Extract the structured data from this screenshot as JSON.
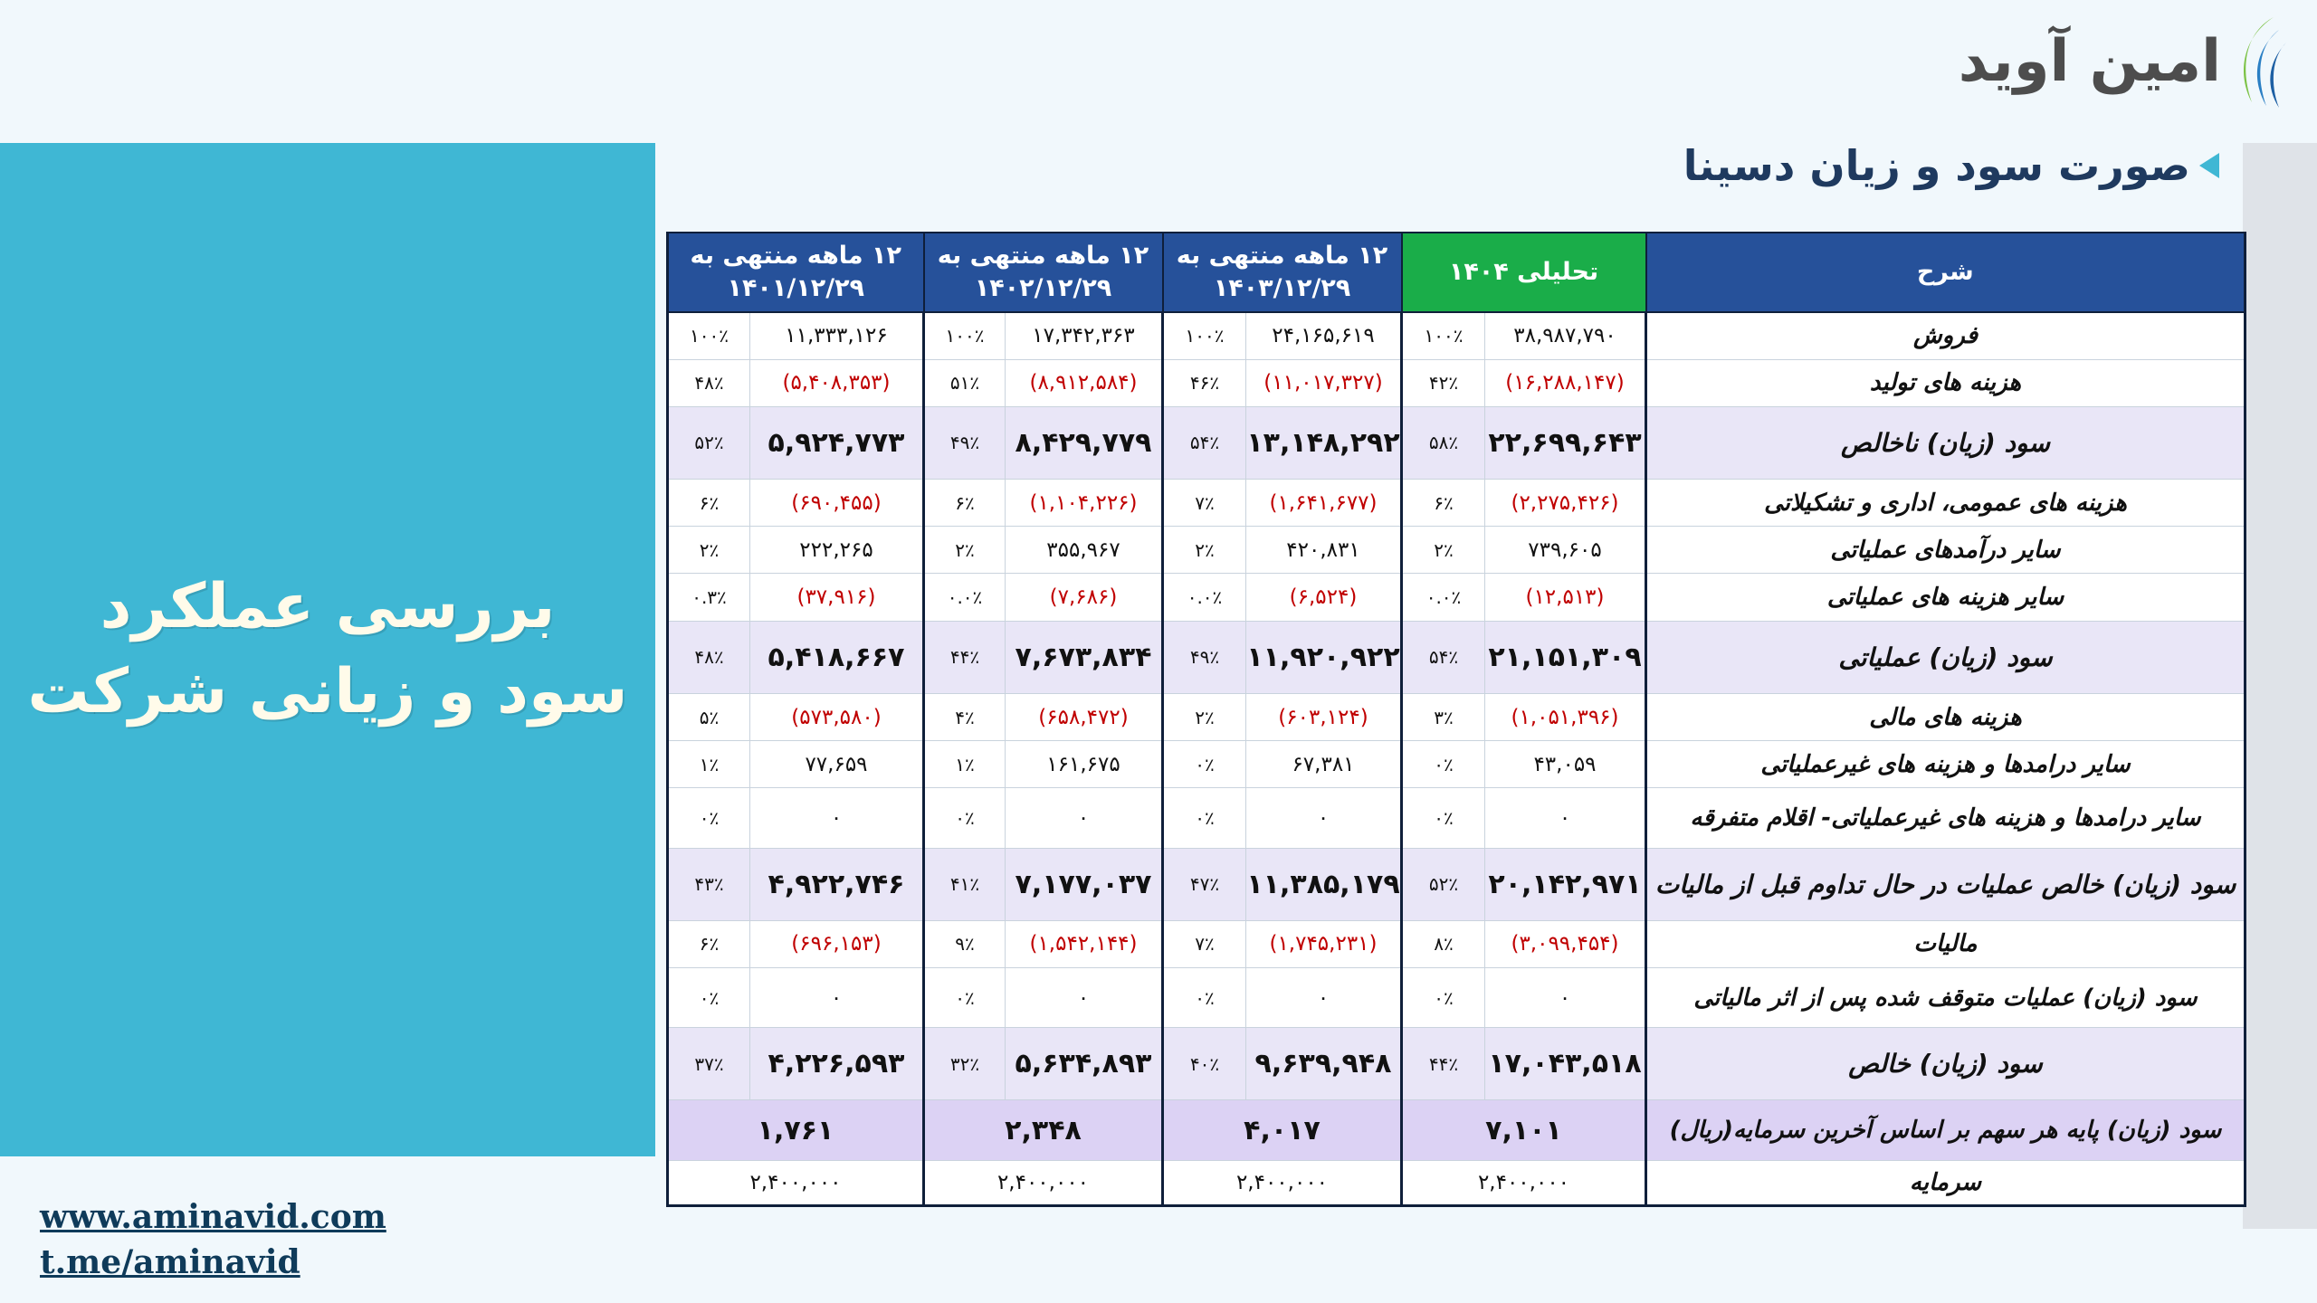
{
  "brand": {
    "name": "امین آوید",
    "color": "#2a7fc4"
  },
  "side_panel": {
    "line1": "بررسی عملکرد",
    "line2": "سود و زیانی شرکت",
    "bg": "#3fb7d4"
  },
  "title": "صورت سود و زیان دسینا",
  "links": {
    "website": "www.aminavid.com",
    "telegram": "t.me/aminavid"
  },
  "table": {
    "headers": {
      "desc": "شرح",
      "c1": "تحلیلی ۱۴۰۴",
      "c2": "۱۲ ماهه منتهی به ۱۴۰۳/۱۲/۲۹",
      "c3": "۱۲ ماهه منتهی به ۱۴۰۲/۱۲/۲۹",
      "c4": "۱۲ ماهه منتهی به ۱۴۰۱/۱۲/۲۹"
    },
    "rows": [
      {
        "label": "فروش",
        "type": "normal",
        "cells": [
          {
            "v": "۳۸,۹۸۷,۷۹۰",
            "p": "۱۰۰٪",
            "neg": false
          },
          {
            "v": "۲۴,۱۶۵,۶۱۹",
            "p": "۱۰۰٪",
            "neg": false
          },
          {
            "v": "۱۷,۳۴۲,۳۶۳",
            "p": "۱۰۰٪",
            "neg": false
          },
          {
            "v": "۱۱,۳۳۳,۱۲۶",
            "p": "۱۰۰٪",
            "neg": false
          }
        ]
      },
      {
        "label": "هزینه های تولید",
        "type": "normal",
        "cells": [
          {
            "v": "(۱۶,۲۸۸,۱۴۷)",
            "p": "۴۲٪",
            "neg": true
          },
          {
            "v": "(۱۱,۰۱۷,۳۲۷)",
            "p": "۴۶٪",
            "neg": true
          },
          {
            "v": "(۸,۹۱۲,۵۸۴)",
            "p": "۵۱٪",
            "neg": true
          },
          {
            "v": "(۵,۴۰۸,۳۵۳)",
            "p": "۴۸٪",
            "neg": true
          }
        ]
      },
      {
        "label": "سود (زیان) ناخالص",
        "type": "big",
        "cells": [
          {
            "v": "۲۲,۶۹۹,۶۴۳",
            "p": "۵۸٪",
            "neg": false
          },
          {
            "v": "۱۳,۱۴۸,۲۹۲",
            "p": "۵۴٪",
            "neg": false
          },
          {
            "v": "۸,۴۲۹,۷۷۹",
            "p": "۴۹٪",
            "neg": false
          },
          {
            "v": "۵,۹۲۴,۷۷۳",
            "p": "۵۲٪",
            "neg": false
          }
        ]
      },
      {
        "label": "هزینه های عمومی، اداری و تشکیلاتی",
        "type": "normal",
        "cells": [
          {
            "v": "(۲,۲۷۵,۴۲۶)",
            "p": "۶٪",
            "neg": true
          },
          {
            "v": "(۱,۶۴۱,۶۷۷)",
            "p": "۷٪",
            "neg": true
          },
          {
            "v": "(۱,۱۰۴,۲۲۶)",
            "p": "۶٪",
            "neg": true
          },
          {
            "v": "(۶۹۰,۴۵۵)",
            "p": "۶٪",
            "neg": true
          }
        ]
      },
      {
        "label": "سایر درآمدهای عملیاتی",
        "type": "normal",
        "cells": [
          {
            "v": "۷۳۹,۶۰۵",
            "p": "۲٪",
            "neg": false
          },
          {
            "v": "۴۲۰,۸۳۱",
            "p": "۲٪",
            "neg": false
          },
          {
            "v": "۳۵۵,۹۶۷",
            "p": "۲٪",
            "neg": false
          },
          {
            "v": "۲۲۲,۲۶۵",
            "p": "۲٪",
            "neg": false
          }
        ]
      },
      {
        "label": "سایر هزینه های عملیاتی",
        "type": "normal",
        "cells": [
          {
            "v": "(۱۲,۵۱۳)",
            "p": "۰.۰٪",
            "neg": true
          },
          {
            "v": "(۶,۵۲۴)",
            "p": "۰.۰٪",
            "neg": true
          },
          {
            "v": "(۷,۶۸۶)",
            "p": "۰.۰٪",
            "neg": true
          },
          {
            "v": "(۳۷,۹۱۶)",
            "p": "۰.۳٪",
            "neg": true
          }
        ]
      },
      {
        "label": "سود (زیان) عملیاتی",
        "type": "big",
        "cells": [
          {
            "v": "۲۱,۱۵۱,۳۰۹",
            "p": "۵۴٪",
            "neg": false
          },
          {
            "v": "۱۱,۹۲۰,۹۲۲",
            "p": "۴۹٪",
            "neg": false
          },
          {
            "v": "۷,۶۷۳,۸۳۴",
            "p": "۴۴٪",
            "neg": false
          },
          {
            "v": "۵,۴۱۸,۶۶۷",
            "p": "۴۸٪",
            "neg": false
          }
        ]
      },
      {
        "label": "هزینه های مالی",
        "type": "normal",
        "cells": [
          {
            "v": "(۱,۰۵۱,۳۹۶)",
            "p": "۳٪",
            "neg": true
          },
          {
            "v": "(۶۰۳,۱۲۴)",
            "p": "۲٪",
            "neg": true
          },
          {
            "v": "(۶۵۸,۴۷۲)",
            "p": "۴٪",
            "neg": true
          },
          {
            "v": "(۵۷۳,۵۸۰)",
            "p": "۵٪",
            "neg": true
          }
        ]
      },
      {
        "label": "سایر درامدها و هزینه های غیرعملیاتی",
        "type": "normal",
        "cells": [
          {
            "v": "۴۳,۰۵۹",
            "p": "۰٪",
            "neg": false
          },
          {
            "v": "۶۷,۳۸۱",
            "p": "۰٪",
            "neg": false
          },
          {
            "v": "۱۶۱,۶۷۵",
            "p": "۱٪",
            "neg": false
          },
          {
            "v": "۷۷,۶۵۹",
            "p": "۱٪",
            "neg": false
          }
        ]
      },
      {
        "label": "سایر درامدها و هزینه های غیرعملیاتی- اقلام متفرقه",
        "type": "normal",
        "cells": [
          {
            "v": "۰",
            "p": "۰٪",
            "neg": false
          },
          {
            "v": "۰",
            "p": "۰٪",
            "neg": false
          },
          {
            "v": "۰",
            "p": "۰٪",
            "neg": false
          },
          {
            "v": "۰",
            "p": "۰٪",
            "neg": false
          }
        ]
      },
      {
        "label": "سود (زیان) خالص عملیات در حال تداوم قبل از مالیات",
        "type": "big",
        "cells": [
          {
            "v": "۲۰,۱۴۲,۹۷۱",
            "p": "۵۲٪",
            "neg": false
          },
          {
            "v": "۱۱,۳۸۵,۱۷۹",
            "p": "۴۷٪",
            "neg": false
          },
          {
            "v": "۷,۱۷۷,۰۳۷",
            "p": "۴۱٪",
            "neg": false
          },
          {
            "v": "۴,۹۲۲,۷۴۶",
            "p": "۴۳٪",
            "neg": false
          }
        ]
      },
      {
        "label": "مالیات",
        "type": "normal",
        "cells": [
          {
            "v": "(۳,۰۹۹,۴۵۴)",
            "p": "۸٪",
            "neg": true
          },
          {
            "v": "(۱,۷۴۵,۲۳۱)",
            "p": "۷٪",
            "neg": true
          },
          {
            "v": "(۱,۵۴۲,۱۴۴)",
            "p": "۹٪",
            "neg": true
          },
          {
            "v": "(۶۹۶,۱۵۳)",
            "p": "۶٪",
            "neg": true
          }
        ]
      },
      {
        "label": "سود (زیان) عملیات متوقف شده پس از اثر مالیاتی",
        "type": "normal",
        "cells": [
          {
            "v": "۰",
            "p": "۰٪",
            "neg": false
          },
          {
            "v": "۰",
            "p": "۰٪",
            "neg": false
          },
          {
            "v": "۰",
            "p": "۰٪",
            "neg": false
          },
          {
            "v": "۰",
            "p": "۰٪",
            "neg": false
          }
        ]
      },
      {
        "label": "سود (زیان) خالص",
        "type": "big",
        "cells": [
          {
            "v": "۱۷,۰۴۳,۵۱۸",
            "p": "۴۴٪",
            "neg": false
          },
          {
            "v": "۹,۶۳۹,۹۴۸",
            "p": "۴۰٪",
            "neg": false
          },
          {
            "v": "۵,۶۳۴,۸۹۳",
            "p": "۳۲٪",
            "neg": false
          },
          {
            "v": "۴,۲۲۶,۵۹۳",
            "p": "۳۷٪",
            "neg": false
          }
        ]
      },
      {
        "label": "سود (زیان)  پایه هر سهم بر اساس آخرین سرمایه(ریال)",
        "type": "eps",
        "values": [
          "۷,۱۰۱",
          "۴,۰۱۷",
          "۲,۳۴۸",
          "۱,۷۶۱"
        ]
      },
      {
        "label": "سرمایه",
        "type": "capital",
        "values": [
          "۲,۴۰۰,۰۰۰",
          "۲,۴۰۰,۰۰۰",
          "۲,۴۰۰,۰۰۰",
          "۲,۴۰۰,۰۰۰"
        ]
      }
    ]
  }
}
